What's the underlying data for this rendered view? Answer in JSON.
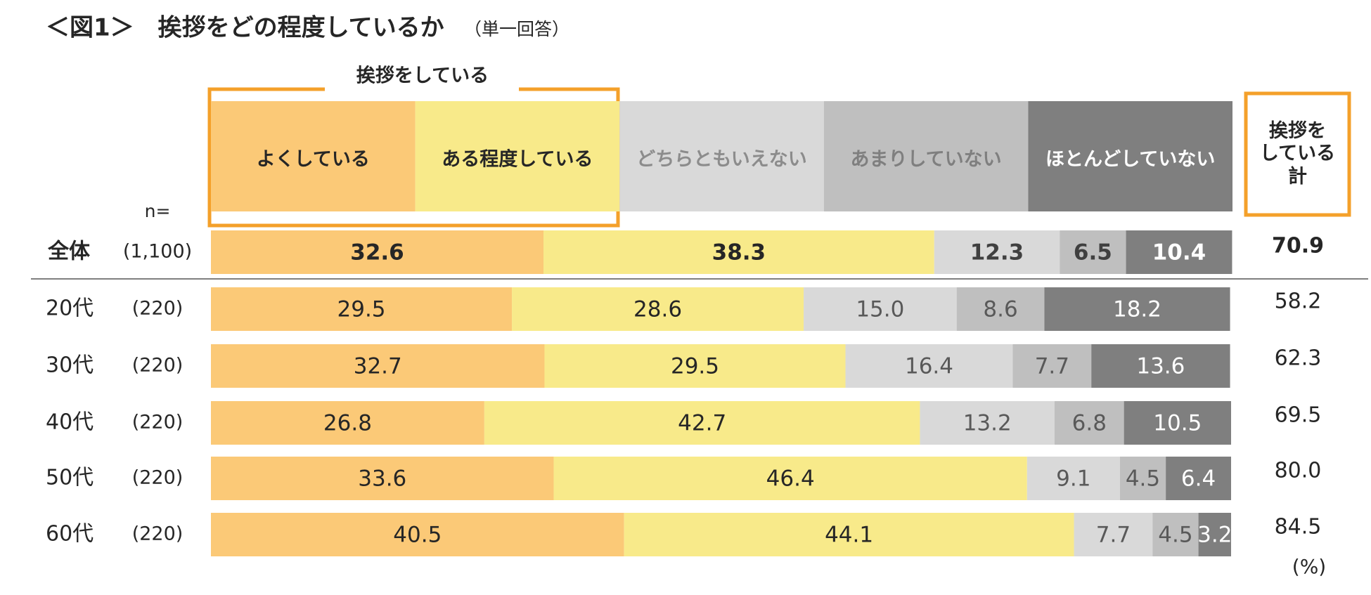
{
  "chart_data": {
    "type": "stacked-bar-100",
    "title": "＜図1＞　挨拶をどの程度しているか",
    "subtitle": "（単一回答）",
    "group_label": "挨拶をしている",
    "n_label": "n=",
    "unit_label": "(%)",
    "categories": [
      "全体",
      "20代",
      "30代",
      "40代",
      "50代",
      "60代"
    ],
    "n_labels": [
      "(1,100)",
      "(220)",
      "(220)",
      "(220)",
      "(220)",
      "(220)"
    ],
    "xlim": [
      0,
      100
    ],
    "series": [
      {
        "name": "よくしている",
        "color": "#fbc977",
        "values": [
          32.6,
          29.5,
          32.7,
          26.8,
          33.6,
          40.5
        ],
        "value_labels": [
          "32.6",
          "29.5",
          "32.7",
          "26.8",
          "33.6",
          "40.5"
        ]
      },
      {
        "name": "ある程度している",
        "color": "#f8ea8a",
        "values": [
          38.3,
          28.6,
          29.5,
          42.7,
          46.4,
          44.1
        ],
        "value_labels": [
          "38.3",
          "28.6",
          "29.5",
          "42.7",
          "46.4",
          "44.1"
        ]
      },
      {
        "name": "どちらともいえない",
        "color": "#d9d9d9",
        "values": [
          12.3,
          15.0,
          16.4,
          13.2,
          9.1,
          7.7
        ],
        "value_labels": [
          "12.3",
          "15.0",
          "16.4",
          "13.2",
          "9.1",
          "7.7"
        ]
      },
      {
        "name": "あまりしていない",
        "color": "#bfbfbf",
        "values": [
          6.5,
          8.6,
          7.7,
          6.8,
          4.5,
          4.5
        ],
        "value_labels": [
          "6.5",
          "8.6",
          "7.7",
          "6.8",
          "4.5",
          "4.5"
        ]
      },
      {
        "name": "ほとんどしていない",
        "color": "#7f7f7f",
        "values": [
          10.4,
          18.2,
          13.6,
          10.5,
          6.4,
          3.2
        ],
        "value_labels": [
          "10.4",
          "18.2",
          "13.6",
          "10.5",
          "6.4",
          "3.2"
        ]
      }
    ],
    "totals": {
      "name": "挨拶を\nしている\n計",
      "values": [
        70.9,
        58.2,
        62.3,
        69.5,
        80.0,
        84.5
      ],
      "value_labels": [
        "70.9",
        "58.2",
        "62.3",
        "69.5",
        "80.0",
        "84.5"
      ]
    }
  }
}
